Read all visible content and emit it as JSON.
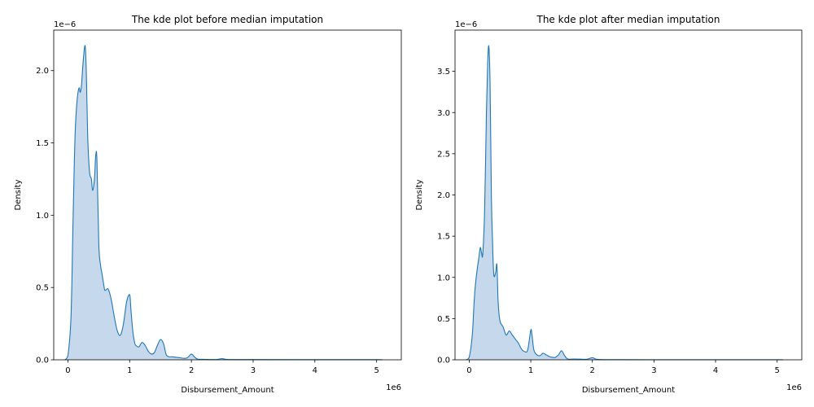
{
  "chart_data": [
    {
      "type": "area",
      "title": "The kde plot before median imputation",
      "xlabel": "Disbursement_Amount",
      "ylabel": "Density",
      "x_offset_label": "1e6",
      "y_offset_label": "1e−6",
      "xlim": [
        -0.23,
        5.4
      ],
      "ylim": [
        0,
        2.28
      ],
      "xticks": [
        0,
        1,
        2,
        3,
        4,
        5
      ],
      "yticks": [
        0.0,
        0.5,
        1.0,
        1.5,
        2.0
      ],
      "xtick_labels": [
        "0",
        "1",
        "2",
        "3",
        "4",
        "5"
      ],
      "ytick_labels": [
        "0.0",
        "0.5",
        "1.0",
        "1.5",
        "2.0"
      ],
      "grid": false,
      "series": [
        {
          "color": "#1f77b4",
          "fill_color": "#c6d9ec",
          "x": [
            -0.05,
            0.0,
            0.05,
            0.08,
            0.1,
            0.12,
            0.15,
            0.18,
            0.2,
            0.22,
            0.25,
            0.28,
            0.3,
            0.32,
            0.35,
            0.38,
            0.4,
            0.43,
            0.45,
            0.47,
            0.5,
            0.53,
            0.55,
            0.58,
            0.6,
            0.65,
            0.7,
            0.75,
            0.8,
            0.85,
            0.9,
            0.95,
            1.0,
            1.02,
            1.05,
            1.08,
            1.1,
            1.15,
            1.2,
            1.25,
            1.3,
            1.35,
            1.4,
            1.45,
            1.5,
            1.55,
            1.6,
            1.7,
            1.8,
            1.9,
            1.95,
            2.0,
            2.05,
            2.1,
            2.2,
            2.4,
            2.5,
            2.6,
            3.0,
            4.0,
            5.0,
            5.05
          ],
          "y": [
            0.0,
            0.03,
            0.3,
            0.9,
            1.3,
            1.6,
            1.8,
            1.88,
            1.85,
            1.9,
            2.08,
            2.17,
            1.95,
            1.55,
            1.3,
            1.25,
            1.17,
            1.25,
            1.41,
            1.38,
            0.8,
            0.65,
            0.6,
            0.52,
            0.48,
            0.49,
            0.42,
            0.3,
            0.2,
            0.17,
            0.25,
            0.4,
            0.45,
            0.35,
            0.2,
            0.12,
            0.1,
            0.09,
            0.12,
            0.1,
            0.06,
            0.04,
            0.05,
            0.1,
            0.14,
            0.11,
            0.03,
            0.02,
            0.015,
            0.01,
            0.02,
            0.04,
            0.02,
            0.005,
            0.003,
            0.002,
            0.008,
            0.002,
            0.002,
            0.001,
            0.001,
            0.0
          ]
        }
      ]
    },
    {
      "type": "area",
      "title": "The kde plot after median imputation",
      "xlabel": "Disbursement_Amount",
      "ylabel": "Density",
      "x_offset_label": "1e6",
      "y_offset_label": "1e−6",
      "xlim": [
        -0.23,
        5.4
      ],
      "ylim": [
        0,
        4.0
      ],
      "xticks": [
        0,
        1,
        2,
        3,
        4,
        5
      ],
      "yticks": [
        0.0,
        0.5,
        1.0,
        1.5,
        2.0,
        2.5,
        3.0,
        3.5
      ],
      "xtick_labels": [
        "0",
        "1",
        "2",
        "3",
        "4",
        "5"
      ],
      "ytick_labels": [
        "0.0",
        "0.5",
        "1.0",
        "1.5",
        "2.0",
        "2.5",
        "3.0",
        "3.5"
      ],
      "grid": false,
      "series": [
        {
          "color": "#1f77b4",
          "fill_color": "#c6d9ec",
          "x": [
            -0.05,
            0.0,
            0.05,
            0.08,
            0.1,
            0.13,
            0.15,
            0.18,
            0.2,
            0.22,
            0.25,
            0.28,
            0.3,
            0.32,
            0.34,
            0.36,
            0.38,
            0.4,
            0.43,
            0.45,
            0.47,
            0.5,
            0.55,
            0.6,
            0.65,
            0.7,
            0.75,
            0.8,
            0.85,
            0.9,
            0.95,
            1.0,
            1.02,
            1.05,
            1.1,
            1.15,
            1.2,
            1.25,
            1.3,
            1.35,
            1.4,
            1.45,
            1.5,
            1.55,
            1.6,
            1.7,
            1.8,
            1.9,
            2.0,
            2.05,
            2.1,
            2.2,
            2.5,
            3.0,
            4.0,
            5.0,
            5.05
          ],
          "y": [
            0.0,
            0.03,
            0.3,
            0.7,
            0.9,
            1.1,
            1.2,
            1.36,
            1.3,
            1.28,
            1.8,
            3.0,
            3.6,
            3.8,
            3.3,
            2.0,
            1.4,
            1.03,
            1.06,
            1.15,
            0.7,
            0.47,
            0.4,
            0.3,
            0.35,
            0.3,
            0.25,
            0.2,
            0.13,
            0.1,
            0.12,
            0.36,
            0.3,
            0.12,
            0.06,
            0.05,
            0.08,
            0.06,
            0.04,
            0.03,
            0.03,
            0.06,
            0.11,
            0.05,
            0.01,
            0.01,
            0.008,
            0.006,
            0.025,
            0.01,
            0.004,
            0.002,
            0.002,
            0.001,
            0.001,
            0.001,
            0.0
          ]
        }
      ]
    }
  ]
}
